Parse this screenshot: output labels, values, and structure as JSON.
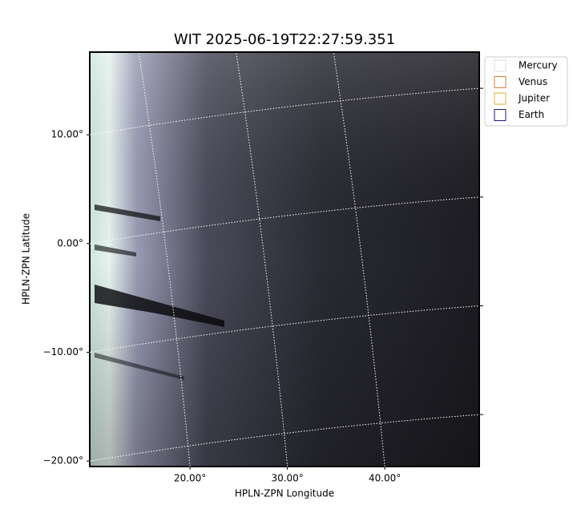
{
  "chart_data": {
    "type": "image",
    "title": "WIT 2025-06-19T22:27:59.351",
    "x_label": "HPLN-ZPN Longitude",
    "y_label": "HPLN-ZPN Latitude",
    "xlim": [
      9.7,
      49.7
    ],
    "ylim": [
      -20.5,
      17.6
    ],
    "xticks": [
      {
        "value": 20,
        "label": "20.00°"
      },
      {
        "value": 30,
        "label": "30.00°"
      },
      {
        "value": 40,
        "label": "40.00°"
      }
    ],
    "yticks": [
      {
        "value": -20,
        "label": "−20.00°"
      },
      {
        "value": -10,
        "label": "−10.00°"
      },
      {
        "value": 0,
        "label": "0.00°"
      },
      {
        "value": 10,
        "label": "10.00°"
      }
    ],
    "grid": true,
    "legend_entries": [
      {
        "name": "Mercury",
        "color": "#dddddd"
      },
      {
        "name": "Venus",
        "color": "#e07a30"
      },
      {
        "name": "Jupiter",
        "color": "#e6b020"
      },
      {
        "name": "Earth",
        "color": "#1a1a80"
      }
    ]
  }
}
